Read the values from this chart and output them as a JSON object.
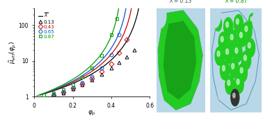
{
  "ylabel": "$\\tilde{\\mu}_{\\mathrm{eff}}(\\varphi_p)$",
  "xlabel": "$\\varphi_p$",
  "xlim": [
    0,
    0.6
  ],
  "ylim": [
    1,
    300
  ],
  "series": [
    {
      "label": "0.13",
      "color": "#000000",
      "marker": "^",
      "phi_max": 0.575,
      "x": [
        0.1,
        0.15,
        0.2,
        0.25,
        0.3,
        0.35,
        0.4,
        0.44,
        0.48,
        0.52
      ],
      "y": [
        1.1,
        1.3,
        1.7,
        2.2,
        3.0,
        4.2,
        6.5,
        9.0,
        13.0,
        20.0
      ]
    },
    {
      "label": "0.43",
      "color": "#cc0000",
      "marker": "D",
      "phi_max": 0.535,
      "x": [
        0.1,
        0.15,
        0.2,
        0.25,
        0.3,
        0.35,
        0.4,
        0.44,
        0.48
      ],
      "y": [
        1.1,
        1.35,
        1.75,
        2.3,
        3.2,
        5.0,
        8.5,
        17.0,
        40.0
      ]
    },
    {
      "label": "0.65",
      "color": "#0055cc",
      "marker": "o",
      "phi_max": 0.505,
      "x": [
        0.1,
        0.15,
        0.2,
        0.25,
        0.3,
        0.35,
        0.4,
        0.44
      ],
      "y": [
        1.15,
        1.4,
        1.8,
        2.5,
        3.8,
        6.5,
        15.0,
        55.0
      ]
    },
    {
      "label": "0.87",
      "color": "#009900",
      "marker": "s",
      "phi_max": 0.465,
      "x": [
        0.05,
        0.1,
        0.15,
        0.2,
        0.25,
        0.3,
        0.35,
        0.4,
        0.43
      ],
      "y": [
        1.1,
        1.3,
        1.6,
        2.2,
        3.5,
        6.5,
        14.0,
        55.0,
        150.0
      ]
    }
  ],
  "lambda_left": "λ = 0.13",
  "lambda_right": "λ = 0.87",
  "lambda_left_color": "#555555",
  "lambda_right_color": "#009900",
  "bg_color": "#b8d8e8",
  "foam_green": "#22cc22",
  "foam_dark_green": "#118811",
  "foam_light_blue": "#aaccdd"
}
